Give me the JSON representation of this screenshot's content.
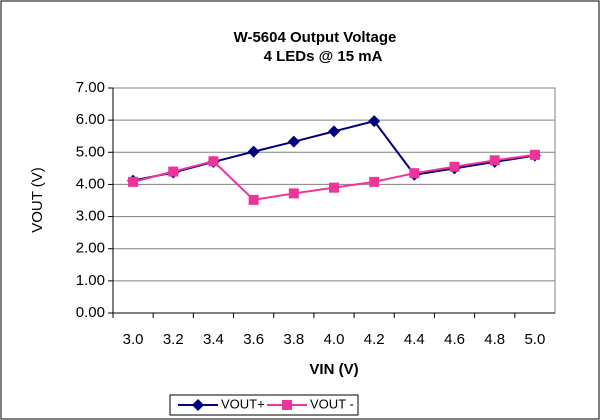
{
  "chart_data": {
    "type": "line",
    "title": "W-5604 Output Voltage",
    "subtitle": "4 LEDs @ 15 mA",
    "x_label": "VIN (V)",
    "y_label": "VOUT (V)",
    "categories": [
      "3.0",
      "3.2",
      "3.4",
      "3.6",
      "3.8",
      "4.0",
      "4.2",
      "4.4",
      "4.6",
      "4.8",
      "5.0"
    ],
    "series": [
      {
        "name": "VOUT+",
        "color": "#000080",
        "marker": "diamond",
        "values": [
          4.12,
          4.37,
          4.7,
          5.02,
          5.33,
          5.65,
          5.97,
          4.3,
          4.5,
          4.7,
          4.9
        ]
      },
      {
        "name": "VOUT -",
        "color": "#ee3399",
        "marker": "square",
        "values": [
          4.08,
          4.4,
          4.72,
          3.52,
          3.72,
          3.9,
          4.08,
          4.35,
          4.55,
          4.75,
          4.92
        ]
      }
    ],
    "ylim": [
      0,
      7
    ],
    "yticks": [
      {
        "value": 0,
        "label": "0.00"
      },
      {
        "value": 1,
        "label": "1.00"
      },
      {
        "value": 2,
        "label": "2.00"
      },
      {
        "value": 3,
        "label": "3.00"
      },
      {
        "value": 4,
        "label": "4.00"
      },
      {
        "value": 5,
        "label": "5.00"
      },
      {
        "value": 6,
        "label": "6.00"
      },
      {
        "value": 7,
        "label": "7.00"
      }
    ],
    "grid": true,
    "legend": "bottom"
  }
}
